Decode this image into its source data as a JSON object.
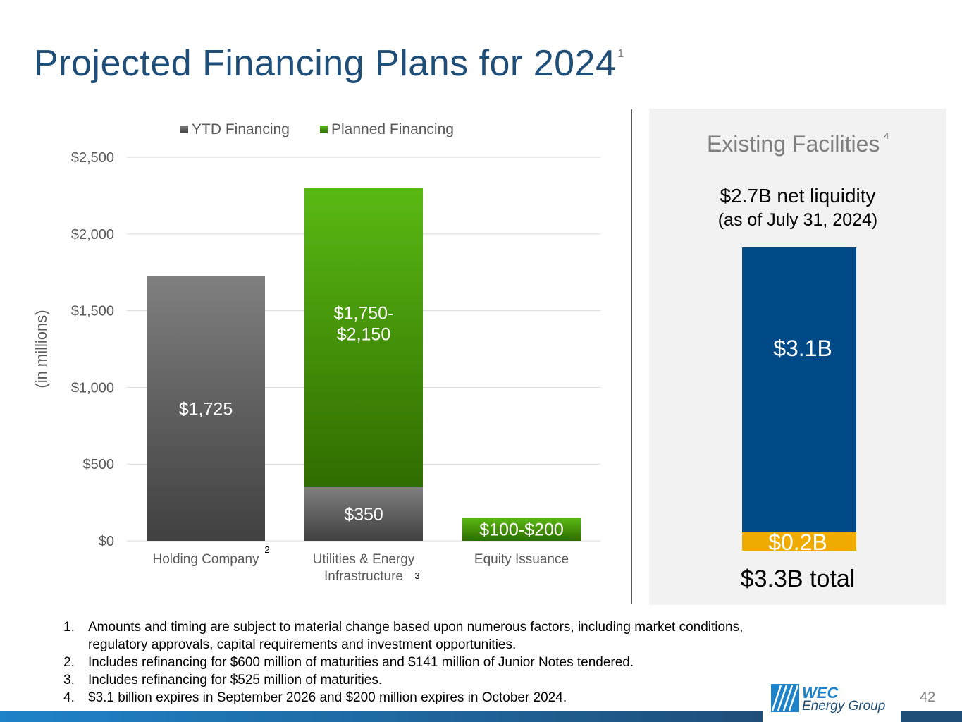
{
  "page": {
    "title": "Projected Financing Plans for 2024",
    "title_footnote": "1",
    "page_number": "42"
  },
  "chart_data": {
    "type": "bar",
    "stacked": true,
    "categories": [
      "Holding Company",
      "Utilities & Energy Infrastructure",
      "Equity Issuance"
    ],
    "category_labels": [
      {
        "lines": [
          "Holding Company"
        ],
        "footnote": "2"
      },
      {
        "lines": [
          "Utilities & Energy",
          "Infrastructure"
        ],
        "footnote": "3"
      },
      {
        "lines": [
          "Equity Issuance"
        ],
        "footnote": ""
      }
    ],
    "series": [
      {
        "name": "YTD Financing",
        "color": "#595959",
        "values": [
          1725,
          350,
          0
        ],
        "labels": [
          "$1,725",
          "$350",
          ""
        ]
      },
      {
        "name": "Planned Financing",
        "color": "#4ea72e",
        "values": [
          0,
          1950,
          150
        ],
        "labels": [
          "",
          "$1,750-\n$2,150",
          "$100-$200"
        ]
      }
    ],
    "ylabel": "(in millions)",
    "ylim": [
      0,
      2500
    ],
    "yticks": [
      0,
      500,
      1000,
      1500,
      2000,
      2500
    ],
    "ytick_labels": [
      "$0",
      "$500",
      "$1,000",
      "$1,500",
      "$2,000",
      "$2,500"
    ],
    "legend_position": "top",
    "grid": true
  },
  "facilities": {
    "title": "Existing Facilities",
    "title_footnote": "4",
    "liquidity": "$2.7B net liquidity",
    "as_of": "(as of July 31, 2024)",
    "total": "$3.3B total",
    "segments": [
      {
        "label": "$0.2B",
        "value": 0.2,
        "color": "#f0ab00"
      },
      {
        "label": "$3.1B",
        "value": 3.1,
        "color": "#004b87"
      }
    ]
  },
  "footnotes": [
    {
      "num": "1.",
      "text": "Amounts and timing are subject to material change based upon numerous factors, including market conditions, regulatory approvals, capital requirements and investment opportunities."
    },
    {
      "num": "2.",
      "text": "Includes refinancing for $600 million of maturities and $141 million of Junior Notes tendered."
    },
    {
      "num": "3.",
      "text": "Includes refinancing for $525 million of maturities."
    },
    {
      "num": "4.",
      "text": "$3.1 billion expires in September 2026 and $200 million expires in October 2024."
    }
  ],
  "logo": {
    "line1": "WEC",
    "line2": "Energy Group"
  }
}
